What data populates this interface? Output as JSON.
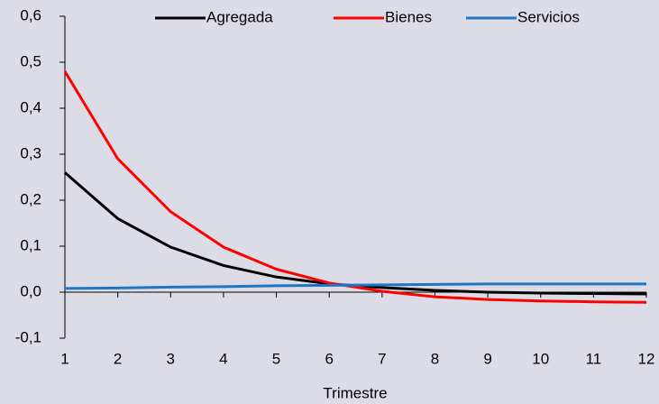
{
  "chart_data": {
    "type": "line",
    "x_label": "Trimestre",
    "x": [
      1,
      2,
      3,
      4,
      5,
      6,
      7,
      8,
      9,
      10,
      11,
      12
    ],
    "xlim": [
      1,
      12
    ],
    "xticks": [
      1,
      2,
      3,
      4,
      5,
      6,
      7,
      8,
      9,
      10,
      11,
      12
    ],
    "ylim": [
      -0.1,
      0.6
    ],
    "yticks": [
      {
        "value": -0.1,
        "label": "-0,1"
      },
      {
        "value": 0,
        "label": "0,0"
      },
      {
        "value": 0.1,
        "label": "0,1"
      },
      {
        "value": 0.2,
        "label": "0,2"
      },
      {
        "value": 0.3,
        "label": "0,3"
      },
      {
        "value": 0.4,
        "label": "0,4"
      },
      {
        "value": 0.5,
        "label": "0,5"
      },
      {
        "value": 0.6,
        "label": "0,6"
      }
    ],
    "grid": false,
    "legend": "top",
    "series": [
      {
        "name": "Agregada",
        "color": "#000000",
        "values": [
          0.26,
          0.16,
          0.098,
          0.058,
          0.033,
          0.018,
          0.01,
          0.004,
          0.0,
          -0.002,
          -0.003,
          -0.004
        ]
      },
      {
        "name": "Bienes",
        "color": "#ff0000",
        "values": [
          0.48,
          0.29,
          0.175,
          0.098,
          0.05,
          0.02,
          0.002,
          -0.01,
          -0.016,
          -0.019,
          -0.021,
          -0.022
        ]
      },
      {
        "name": "Servicios",
        "color": "#1f77c4",
        "values": [
          0.008,
          0.009,
          0.011,
          0.012,
          0.014,
          0.015,
          0.016,
          0.017,
          0.018,
          0.018,
          0.018,
          0.018
        ]
      }
    ]
  }
}
